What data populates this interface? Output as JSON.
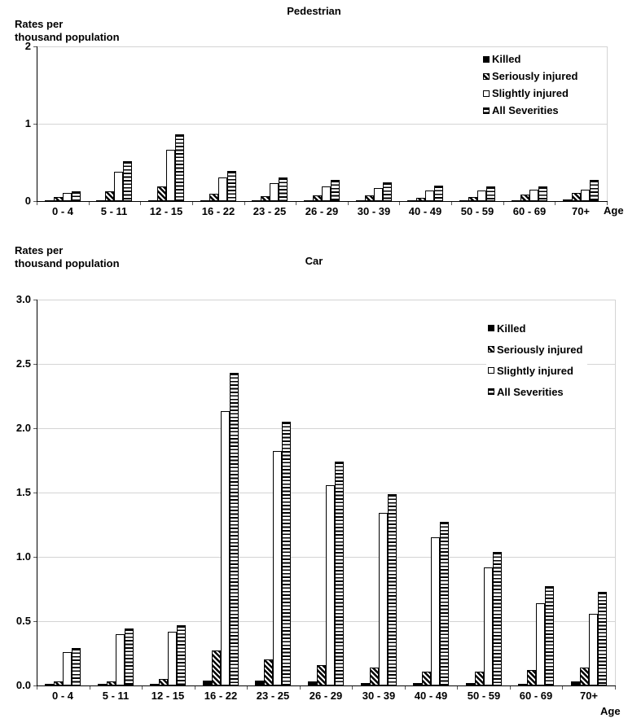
{
  "legend": [
    "Killed",
    "Seriously injured",
    "Slightly injured",
    "All Severities"
  ],
  "chart_data": [
    {
      "type": "bar",
      "title": "Pedestrian",
      "ylabel": "Rates per\nthousand population",
      "xlabel": "Age",
      "ylim": [
        0,
        2
      ],
      "yticks": [
        "0",
        "1",
        "2"
      ],
      "grid": true,
      "legend_position": "upper right",
      "categories": [
        "0 - 4",
        "5 - 11",
        "12 - 15",
        "16 - 22",
        "23 - 25",
        "26 - 29",
        "30 - 39",
        "40 - 49",
        "50 - 59",
        "60 - 69",
        "70+"
      ],
      "series": [
        {
          "name": "Killed",
          "values": [
            0.01,
            0.01,
            0.01,
            0.01,
            0.01,
            0.01,
            0.01,
            0.01,
            0.01,
            0.01,
            0.02
          ]
        },
        {
          "name": "Seriously injured",
          "values": [
            0.05,
            0.13,
            0.19,
            0.09,
            0.06,
            0.07,
            0.07,
            0.04,
            0.05,
            0.08,
            0.11
          ]
        },
        {
          "name": "Slightly injured",
          "values": [
            0.1,
            0.38,
            0.66,
            0.3,
            0.23,
            0.19,
            0.17,
            0.14,
            0.14,
            0.15,
            0.15
          ]
        },
        {
          "name": "All Severities",
          "values": [
            0.13,
            0.52,
            0.86,
            0.39,
            0.3,
            0.27,
            0.24,
            0.2,
            0.19,
            0.19,
            0.27
          ]
        }
      ]
    },
    {
      "type": "bar",
      "title": "Car",
      "ylabel": "Rates per\nthousand population",
      "xlabel": "Age",
      "ylim": [
        0,
        3
      ],
      "yticks": [
        "0.0",
        "0.5",
        "1.0",
        "1.5",
        "2.0",
        "2.5",
        "3.0"
      ],
      "grid": true,
      "legend_position": "upper right",
      "categories": [
        "0 - 4",
        "5 - 11",
        "12 - 15",
        "16 - 22",
        "23 - 25",
        "26 - 29",
        "30 - 39",
        "40 - 49",
        "50 - 59",
        "60 - 69",
        "70+"
      ],
      "series": [
        {
          "name": "Killed",
          "values": [
            0.01,
            0.01,
            0.01,
            0.04,
            0.04,
            0.03,
            0.02,
            0.02,
            0.02,
            0.01,
            0.03
          ]
        },
        {
          "name": "Seriously injured",
          "values": [
            0.03,
            0.03,
            0.05,
            0.27,
            0.2,
            0.16,
            0.14,
            0.11,
            0.11,
            0.12,
            0.14
          ]
        },
        {
          "name": "Slightly injured",
          "values": [
            0.26,
            0.4,
            0.42,
            2.13,
            1.82,
            1.56,
            1.34,
            1.15,
            0.92,
            0.64,
            0.56
          ]
        },
        {
          "name": "All Severities",
          "values": [
            0.29,
            0.44,
            0.47,
            2.43,
            2.05,
            1.74,
            1.49,
            1.27,
            1.04,
            0.77,
            0.73
          ]
        }
      ]
    }
  ],
  "colors": {
    "bar_fill": "#000000",
    "bar_background": "#ffffff",
    "gridline": "#d4d4d4",
    "text": "#000000"
  }
}
